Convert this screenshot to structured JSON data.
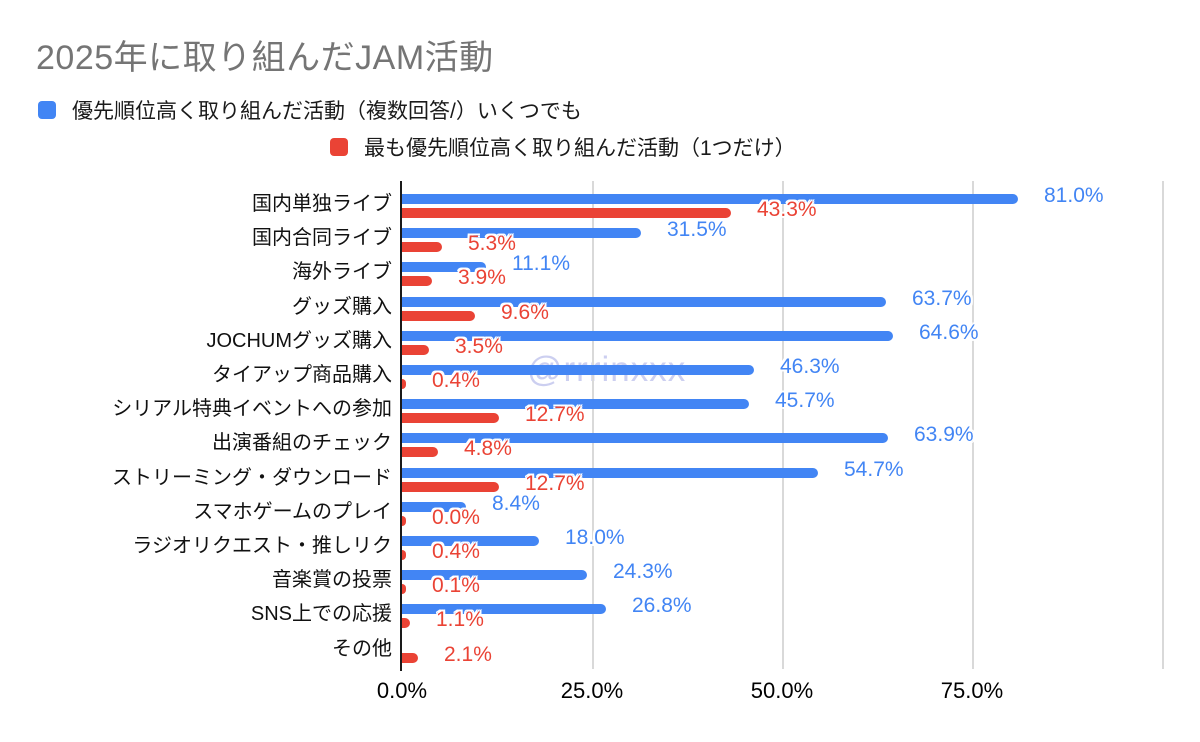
{
  "title": "2025年に取り組んだJAM活動",
  "watermark": "@rrrinxxx",
  "legend": [
    {
      "label": "優先順位高く取り組んだ活動（複数回答/）いくつでも",
      "color": "#4285F4"
    },
    {
      "label": "最も優先順位高く取り組んだ活動（1つだけ）",
      "color": "#EA4335"
    }
  ],
  "chart_data": {
    "type": "bar",
    "orientation": "horizontal",
    "title": "2025年に取り組んだJAM活動",
    "categories": [
      "国内単独ライブ",
      "国内合同ライブ",
      "海外ライブ",
      "グッズ購入",
      "JOCHUMグッズ購入",
      "タイアップ商品購入",
      "シリアル特典イベントへの参加",
      "出演番組のチェック",
      "ストリーミング・ダウンロード",
      "スマホゲームのプレイ",
      "ラジオリクエスト・推しリク",
      "音楽賞の投票",
      "SNS上での応援",
      "その他"
    ],
    "series": [
      {
        "name": "優先順位高く取り組んだ活動（複数回答/）いくつでも",
        "color": "#4285F4",
        "values": [
          81.0,
          31.5,
          11.1,
          63.7,
          64.6,
          46.3,
          45.7,
          63.9,
          54.7,
          8.4,
          18.0,
          24.3,
          26.8,
          null
        ]
      },
      {
        "name": "最も優先順位高く取り組んだ活動（1つだけ）",
        "color": "#EA4335",
        "values": [
          43.3,
          5.3,
          3.9,
          9.6,
          3.5,
          0.4,
          12.7,
          4.8,
          12.7,
          0.0,
          0.4,
          0.1,
          1.1,
          2.1
        ]
      }
    ],
    "x_tick_labels": [
      "0.0%",
      "25.0%",
      "50.0%",
      "75.0%"
    ],
    "x_tick_values": [
      0,
      25,
      50,
      75
    ],
    "gridline_values": [
      25,
      50,
      75,
      100
    ],
    "xlim": [
      0,
      100
    ],
    "value_label_format": "one-decimal-percent",
    "legend_position": "top",
    "grid": true
  },
  "colors": {
    "title": "#757575",
    "category_label": "#111111",
    "axis": "#1a1a1a",
    "gridline": "#d9d9d9",
    "background": "#ffffff",
    "watermark": "#aeb2e8"
  }
}
